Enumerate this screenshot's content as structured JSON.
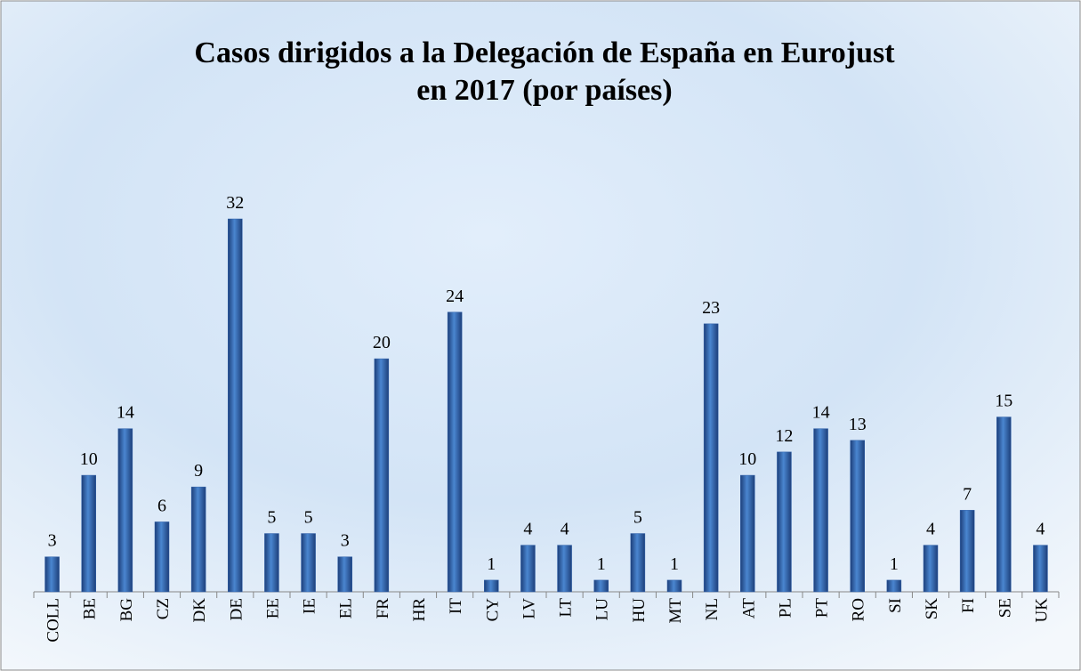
{
  "chart_data": {
    "type": "bar",
    "title": [
      "Casos dirigidos a la Delegación de España en Eurojust",
      "en 2017 (por países)"
    ],
    "categories": [
      "COLL",
      "BE",
      "BG",
      "CZ",
      "DK",
      "DE",
      "EE",
      "IE",
      "EL",
      "FR",
      "HR",
      "IT",
      "CY",
      "LV",
      "LT",
      "LU",
      "HU",
      "MT",
      "NL",
      "AT",
      "PL",
      "PT",
      "RO",
      "SI",
      "SK",
      "FI",
      "SE",
      "UK"
    ],
    "values": [
      3,
      10,
      14,
      6,
      9,
      32,
      5,
      5,
      3,
      20,
      null,
      24,
      1,
      4,
      4,
      1,
      5,
      1,
      23,
      10,
      12,
      14,
      13,
      1,
      4,
      7,
      15,
      4
    ],
    "color": "#2e5fa8",
    "ylim": [
      0,
      32
    ]
  }
}
